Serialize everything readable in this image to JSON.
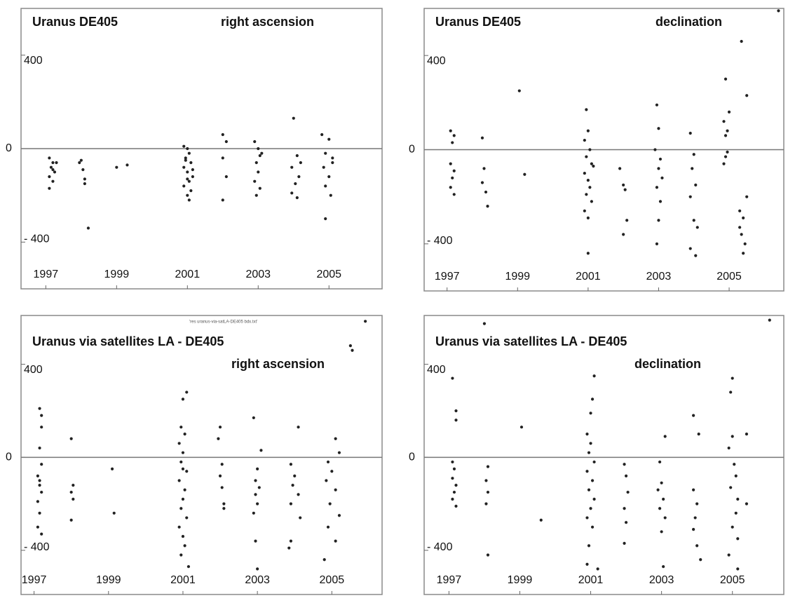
{
  "chart_data": [
    {
      "type": "scatter",
      "title": "Uranus DE405",
      "subtitle": "right ascension",
      "x": [
        1997.1,
        1997.2,
        1997.15,
        1997.25,
        1997.1,
        1997.2,
        1997.1,
        1997.3,
        1997.2,
        1998.0,
        1998.05,
        1998.1,
        1998.1,
        1998.2,
        1997.95,
        1999.0,
        1999.3,
        2000.9,
        2001.0,
        2001.05,
        2000.95,
        2001.1,
        2000.9,
        2001.0,
        2001.15,
        2001.05,
        2000.9,
        2001.1,
        2001.0,
        2001.05,
        2000.95,
        2001.15,
        2001.0,
        2002.0,
        2002.1,
        2002.0,
        2002.1,
        2002.0,
        2002.9,
        2003.0,
        2003.05,
        2002.95,
        2003.0,
        2002.9,
        2003.05,
        2002.95,
        2003.1,
        2004.0,
        2004.1,
        2003.95,
        2004.15,
        2004.05,
        2003.95,
        2004.1,
        2004.2,
        2004.8,
        2005.0,
        2004.9,
        2005.1,
        2004.85,
        2005.0,
        2004.9,
        2005.05,
        2004.9,
        2005.1
      ],
      "values": [
        -40,
        -60,
        -80,
        -100,
        -120,
        -140,
        -170,
        -60,
        -90,
        -50,
        -90,
        -130,
        -150,
        -340,
        -60,
        -80,
        -70,
        10,
        0,
        -20,
        -40,
        -60,
        -80,
        -100,
        -120,
        -140,
        -160,
        -180,
        -200,
        -220,
        -50,
        -90,
        -130,
        60,
        30,
        -40,
        -120,
        -220,
        30,
        0,
        -30,
        -60,
        -100,
        -140,
        -170,
        -200,
        -20,
        130,
        -30,
        -80,
        -120,
        -150,
        -190,
        -210,
        -60,
        60,
        40,
        -20,
        -40,
        -80,
        -120,
        -160,
        -200,
        -300,
        -60
      ],
      "color": "#222222",
      "zero_line": true,
      "xlim": [
        1996.3,
        2006.5
      ],
      "xticks": [
        1997,
        1999,
        2001,
        2003,
        2005
      ],
      "ylim": [
        -600,
        600
      ],
      "yticks": [
        {
          "value": -400,
          "label": "- 400"
        },
        0,
        400
      ]
    },
    {
      "type": "scatter",
      "title": "Uranus DE405",
      "subtitle": "declination",
      "x": [
        1997.1,
        1997.2,
        1997.15,
        1997.1,
        1997.2,
        1997.15,
        1997.1,
        1997.2,
        1998.0,
        1998.05,
        1998.0,
        1998.1,
        1998.15,
        1999.05,
        1999.2,
        2000.95,
        2001.0,
        2000.9,
        2001.05,
        2000.95,
        2001.1,
        2000.9,
        2001.0,
        2001.05,
        2000.95,
        2001.1,
        2000.9,
        2001.0,
        2001.0,
        2001.15,
        2001.9,
        2002.0,
        2002.05,
        2002.1,
        2002.0,
        2002.95,
        2003.0,
        2002.9,
        2003.05,
        2003.0,
        2003.1,
        2002.95,
        2003.05,
        2003.0,
        2002.95,
        2003.9,
        2004.0,
        2003.95,
        2004.05,
        2003.9,
        2004.0,
        2004.1,
        2003.9,
        2004.05,
        2004.9,
        2005.0,
        2004.85,
        2004.95,
        2004.9,
        2004.85,
        2004.95,
        2004.9,
        2005.35,
        2005.3,
        2005.4,
        2005.3,
        2005.35,
        2005.45,
        2005.4,
        2005.5,
        2005.5,
        2006.4
      ],
      "values": [
        80,
        60,
        30,
        -60,
        -90,
        -120,
        -160,
        -190,
        50,
        -80,
        -140,
        -180,
        -240,
        250,
        -105,
        170,
        80,
        40,
        0,
        -30,
        -60,
        -100,
        -130,
        -160,
        -190,
        -220,
        -260,
        -290,
        -440,
        -70,
        -80,
        -150,
        -170,
        -300,
        -360,
        190,
        90,
        0,
        -40,
        -80,
        -120,
        -160,
        -220,
        -300,
        -400,
        70,
        -20,
        -80,
        -150,
        -200,
        -300,
        -330,
        -420,
        -450,
        300,
        160,
        120,
        80,
        -30,
        -60,
        -10,
        60,
        460,
        -260,
        -290,
        -330,
        -360,
        -400,
        -440,
        230,
        -200,
        590
      ],
      "color": "#222222",
      "zero_line": true,
      "xlim": [
        1996.35,
        2006.55
      ],
      "xticks": [
        1997,
        1999,
        2001,
        2003,
        2005
      ],
      "ylim": [
        -600,
        600
      ],
      "yticks": [
        {
          "value": -400,
          "label": "- 400"
        },
        0,
        400
      ]
    },
    {
      "type": "scatter",
      "title": "Uranus via satellites LA - DE405",
      "subtitle": "right ascension",
      "annotation": "'res uranus-via-satLA-DE405 bdx.txt'",
      "x": [
        1997.15,
        1997.2,
        1997.2,
        1997.15,
        1997.2,
        1997.1,
        1997.15,
        1997.2,
        1997.1,
        1997.15,
        1997.1,
        1997.2,
        1997.15,
        1998.0,
        1998.05,
        1998.0,
        1998.05,
        1998.0,
        1999.1,
        1999.15,
        2001.1,
        2001.0,
        2000.95,
        2001.05,
        2000.9,
        2001.0,
        2000.95,
        2001.1,
        2000.9,
        2001.05,
        2001.0,
        2000.95,
        2001.1,
        2000.9,
        2001.0,
        2001.05,
        2000.95,
        2001.15,
        2001.0,
        2002.0,
        2001.95,
        2002.05,
        2002.0,
        2002.05,
        2002.1,
        2002.1,
        2002.9,
        2003.1,
        2003.0,
        2002.95,
        2003.05,
        2002.95,
        2003.0,
        2002.9,
        2002.95,
        2003.0,
        2004.1,
        2003.9,
        2004.0,
        2003.95,
        2004.1,
        2003.9,
        2004.15,
        2003.9,
        2003.85,
        2005.1,
        2005.2,
        2004.9,
        2005.0,
        2004.85,
        2005.1,
        2004.95,
        2005.2,
        2004.9,
        2005.1,
        2004.8,
        2005.5,
        2005.55,
        2005.9
      ],
      "values": [
        210,
        180,
        130,
        40,
        -30,
        -80,
        -120,
        -150,
        -190,
        -240,
        -300,
        -330,
        -100,
        80,
        -120,
        -150,
        -180,
        -270,
        -50,
        -240,
        280,
        250,
        130,
        100,
        60,
        20,
        -20,
        -60,
        -100,
        -140,
        -180,
        -220,
        -260,
        -300,
        -340,
        -380,
        -420,
        -470,
        -50,
        130,
        80,
        -30,
        -80,
        -130,
        -200,
        -220,
        170,
        30,
        -50,
        -100,
        -130,
        -160,
        -200,
        -240,
        -360,
        -480,
        130,
        -30,
        -80,
        -120,
        -160,
        -200,
        -260,
        -360,
        -390,
        80,
        20,
        -20,
        -60,
        -100,
        -140,
        -200,
        -250,
        -300,
        -360,
        -440,
        480,
        460,
        585
      ],
      "color": "#222222",
      "zero_line": true,
      "xlim": [
        1996.65,
        2006.35
      ],
      "xticks": [
        1997,
        1999,
        2001,
        2003,
        2005
      ],
      "ylim": [
        -590,
        610
      ],
      "yticks": [
        {
          "value": -400,
          "label": "- 400"
        },
        0,
        400
      ]
    },
    {
      "type": "scatter",
      "title": "Uranus via satellites LA - DE405",
      "subtitle": "declination",
      "x": [
        1997.1,
        1997.2,
        1997.2,
        1997.1,
        1997.15,
        1997.1,
        1997.2,
        1997.15,
        1997.1,
        1997.2,
        1998.0,
        1998.1,
        1998.05,
        1998.1,
        1998.05,
        1998.1,
        1999.05,
        1999.6,
        2001.1,
        2001.05,
        2001.0,
        2000.9,
        2001.0,
        2000.95,
        2001.1,
        2000.9,
        2001.05,
        2000.95,
        2001.1,
        2001.0,
        2000.9,
        2001.05,
        2000.95,
        2000.9,
        2001.2,
        2001.95,
        2002.0,
        2002.05,
        2001.95,
        2002.0,
        2001.95,
        2003.1,
        2002.95,
        2003.0,
        2002.9,
        2003.05,
        2002.95,
        2003.1,
        2003.0,
        2003.05,
        2003.9,
        2004.05,
        2003.9,
        2004.0,
        2003.95,
        2003.9,
        2004.0,
        2004.1,
        2005.0,
        2004.95,
        2005.0,
        2004.9,
        2005.05,
        2005.1,
        2004.95,
        2005.15,
        2005.1,
        2005.0,
        2005.15,
        2004.9,
        2005.15,
        2005.4,
        2005.4,
        2006.05
      ],
      "values": [
        340,
        200,
        160,
        -20,
        -50,
        -90,
        -120,
        -150,
        -180,
        -210,
        575,
        -40,
        -100,
        -150,
        -200,
        -420,
        130,
        -270,
        350,
        250,
        190,
        100,
        60,
        20,
        -20,
        -60,
        -100,
        -140,
        -180,
        -220,
        -260,
        -300,
        -380,
        -460,
        -480,
        -30,
        -80,
        -150,
        -220,
        -280,
        -370,
        90,
        -20,
        -110,
        -140,
        -180,
        -220,
        -260,
        -320,
        -470,
        180,
        100,
        -140,
        -200,
        -260,
        -310,
        -380,
        -440,
        340,
        280,
        90,
        40,
        -30,
        -80,
        -130,
        -180,
        -240,
        -300,
        -350,
        -420,
        -480,
        100,
        -200,
        590
      ],
      "color": "#222222",
      "zero_line": true,
      "xlim": [
        1996.3,
        2006.45
      ],
      "xticks": [
        1997,
        1999,
        2001,
        2003,
        2005
      ],
      "ylim": [
        -590,
        610
      ],
      "yticks": [
        {
          "value": -400,
          "label": "- 400"
        },
        0,
        400
      ]
    }
  ]
}
